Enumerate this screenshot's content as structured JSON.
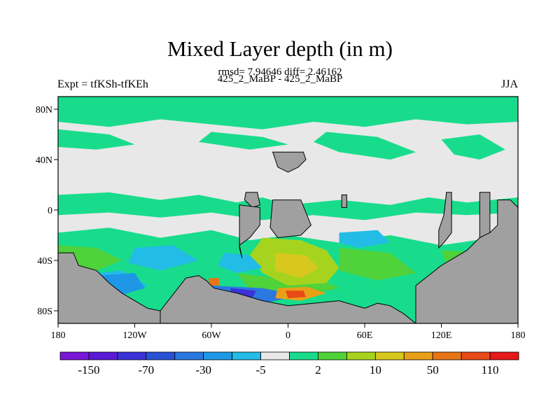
{
  "title": "Mixed Layer depth (in m)",
  "stats": "rmsd= 7.94646 diff= 2.46162",
  "subtitle": "425_2_MaBP - 425_2_MaBP",
  "left_label": "Expt = tfKSh-tfKEh",
  "right_label": "JJA",
  "colors": {
    "land": "#a0a0a0",
    "background": "#e8e8e8",
    "frame": "#000000"
  },
  "chart_data": {
    "type": "heatmap",
    "projection": "cylindrical-equidistant",
    "xlim": [
      -180,
      180
    ],
    "ylim": [
      -90,
      90
    ],
    "x_ticks": [
      {
        "value": -180,
        "label": "180"
      },
      {
        "value": -120,
        "label": "120W"
      },
      {
        "value": -60,
        "label": "60W"
      },
      {
        "value": 0,
        "label": "0"
      },
      {
        "value": 60,
        "label": "60E"
      },
      {
        "value": 120,
        "label": "120E"
      },
      {
        "value": 180,
        "label": "180"
      }
    ],
    "y_ticks": [
      {
        "value": 80,
        "label": "80N"
      },
      {
        "value": 40,
        "label": "40N"
      },
      {
        "value": 0,
        "label": "0"
      },
      {
        "value": -40,
        "label": "40S"
      },
      {
        "value": -80,
        "label": "80S"
      }
    ],
    "colorbar": {
      "colors": [
        "#7a16d6",
        "#5a1ad6",
        "#3a32d6",
        "#2a52d6",
        "#2a78e0",
        "#1e98e6",
        "#22bce6",
        "#e8e8e8",
        "#18dc8c",
        "#50d23a",
        "#a6d41e",
        "#d8c81e",
        "#e8a018",
        "#e87418",
        "#e84a18",
        "#e81818"
      ],
      "labels": [
        {
          "boundary": 1,
          "text": "-150"
        },
        {
          "boundary": 3,
          "text": "-70"
        },
        {
          "boundary": 5,
          "text": "-30"
        },
        {
          "boundary": 7,
          "text": "-5"
        },
        {
          "boundary": 9,
          "text": "2"
        },
        {
          "boundary": 11,
          "text": "10"
        },
        {
          "boundary": 13,
          "text": "50"
        },
        {
          "boundary": 15,
          "text": "110"
        }
      ]
    },
    "field_regions": [
      {
        "color": "#18dc8c",
        "polygon": [
          [
            -180,
            90
          ],
          [
            180,
            90
          ],
          [
            180,
            70
          ],
          [
            140,
            68
          ],
          [
            100,
            72
          ],
          [
            60,
            66
          ],
          [
            20,
            70
          ],
          [
            -20,
            64
          ],
          [
            -60,
            68
          ],
          [
            -100,
            72
          ],
          [
            -140,
            66
          ],
          [
            -180,
            70
          ]
        ]
      },
      {
        "color": "#18dc8c",
        "polygon": [
          [
            -180,
            64
          ],
          [
            -140,
            60
          ],
          [
            -120,
            52
          ],
          [
            -150,
            48
          ],
          [
            -180,
            50
          ]
        ]
      },
      {
        "color": "#18dc8c",
        "polygon": [
          [
            -60,
            62
          ],
          [
            -20,
            58
          ],
          [
            0,
            52
          ],
          [
            -30,
            48
          ],
          [
            -70,
            54
          ]
        ]
      },
      {
        "color": "#18dc8c",
        "polygon": [
          [
            30,
            62
          ],
          [
            70,
            58
          ],
          [
            100,
            46
          ],
          [
            80,
            40
          ],
          [
            40,
            46
          ],
          [
            20,
            54
          ]
        ]
      },
      {
        "color": "#18dc8c",
        "polygon": [
          [
            120,
            56
          ],
          [
            150,
            60
          ],
          [
            170,
            48
          ],
          [
            150,
            40
          ],
          [
            130,
            44
          ]
        ]
      },
      {
        "color": "#18dc8c",
        "polygon": [
          [
            -180,
            12
          ],
          [
            -140,
            14
          ],
          [
            -100,
            8
          ],
          [
            -70,
            12
          ],
          [
            -40,
            6
          ],
          [
            -20,
            10
          ],
          [
            0,
            4
          ],
          [
            40,
            8
          ],
          [
            80,
            4
          ],
          [
            110,
            10
          ],
          [
            140,
            6
          ],
          [
            180,
            10
          ],
          [
            180,
            -2
          ],
          [
            140,
            -4
          ],
          [
            100,
            -2
          ],
          [
            60,
            -8
          ],
          [
            20,
            -4
          ],
          [
            -20,
            -8
          ],
          [
            -60,
            -2
          ],
          [
            -100,
            -6
          ],
          [
            -140,
            -2
          ],
          [
            -180,
            -4
          ]
        ]
      },
      {
        "color": "#18dc8c",
        "polygon": [
          [
            -180,
            -18
          ],
          [
            -140,
            -14
          ],
          [
            -100,
            -22
          ],
          [
            -60,
            -16
          ],
          [
            -30,
            -24
          ],
          [
            0,
            -20
          ],
          [
            40,
            -26
          ],
          [
            80,
            -20
          ],
          [
            120,
            -28
          ],
          [
            160,
            -22
          ],
          [
            180,
            -26
          ],
          [
            180,
            -90
          ],
          [
            -180,
            -90
          ]
        ]
      },
      {
        "color": "#50d23a",
        "polygon": [
          [
            -180,
            -28
          ],
          [
            -150,
            -30
          ],
          [
            -130,
            -40
          ],
          [
            -150,
            -48
          ],
          [
            -180,
            -44
          ]
        ]
      },
      {
        "color": "#50d23a",
        "polygon": [
          [
            40,
            -30
          ],
          [
            80,
            -34
          ],
          [
            100,
            -50
          ],
          [
            70,
            -56
          ],
          [
            40,
            -48
          ]
        ]
      },
      {
        "color": "#50d23a",
        "polygon": [
          [
            120,
            -32
          ],
          [
            160,
            -34
          ],
          [
            180,
            -44
          ],
          [
            150,
            -50
          ],
          [
            125,
            -46
          ]
        ]
      },
      {
        "color": "#50d23a",
        "polygon": [
          [
            -40,
            -50
          ],
          [
            -10,
            -54
          ],
          [
            20,
            -52
          ],
          [
            40,
            -62
          ],
          [
            10,
            -68
          ],
          [
            -30,
            -64
          ]
        ]
      },
      {
        "color": "#a6d41e",
        "polygon": [
          [
            -20,
            -22
          ],
          [
            10,
            -24
          ],
          [
            30,
            -32
          ],
          [
            40,
            -46
          ],
          [
            30,
            -58
          ],
          [
            0,
            -60
          ],
          [
            -20,
            -50
          ],
          [
            -30,
            -36
          ]
        ]
      },
      {
        "color": "#d8c81e",
        "polygon": [
          [
            -10,
            -34
          ],
          [
            14,
            -36
          ],
          [
            24,
            -46
          ],
          [
            10,
            -54
          ],
          [
            -10,
            -48
          ]
        ]
      },
      {
        "color": "#22bce6",
        "polygon": [
          [
            -120,
            -30
          ],
          [
            -90,
            -28
          ],
          [
            -70,
            -40
          ],
          [
            -100,
            -48
          ],
          [
            -125,
            -42
          ]
        ]
      },
      {
        "color": "#22bce6",
        "polygon": [
          [
            -170,
            -52
          ],
          [
            -130,
            -48
          ],
          [
            -110,
            -60
          ],
          [
            -140,
            -72
          ],
          [
            -175,
            -68
          ]
        ]
      },
      {
        "color": "#22bce6",
        "polygon": [
          [
            -50,
            -34
          ],
          [
            -30,
            -36
          ],
          [
            -20,
            -46
          ],
          [
            -40,
            -50
          ],
          [
            -55,
            -44
          ]
        ]
      },
      {
        "color": "#22bce6",
        "polygon": [
          [
            40,
            -18
          ],
          [
            70,
            -16
          ],
          [
            80,
            -26
          ],
          [
            55,
            -30
          ],
          [
            40,
            -26
          ]
        ]
      },
      {
        "color": "#1e98e6",
        "polygon": [
          [
            -150,
            -52
          ],
          [
            -120,
            -50
          ],
          [
            -112,
            -62
          ],
          [
            -140,
            -70
          ]
        ]
      },
      {
        "color": "#2a78e0",
        "polygon": [
          [
            -60,
            -60
          ],
          [
            -20,
            -62
          ],
          [
            10,
            -68
          ],
          [
            -20,
            -74
          ],
          [
            -60,
            -70
          ]
        ]
      },
      {
        "color": "#3a32d6",
        "polygon": [
          [
            -45,
            -62
          ],
          [
            -25,
            -64
          ],
          [
            -28,
            -70
          ],
          [
            -45,
            -70
          ]
        ]
      },
      {
        "color": "#e8a018",
        "polygon": [
          [
            -8,
            -62
          ],
          [
            15,
            -61
          ],
          [
            30,
            -66
          ],
          [
            10,
            -72
          ],
          [
            -10,
            -70
          ]
        ]
      },
      {
        "color": "#e84a18",
        "polygon": [
          [
            -2,
            -64
          ],
          [
            12,
            -64
          ],
          [
            14,
            -69
          ],
          [
            0,
            -70
          ]
        ]
      },
      {
        "color": "#e87418",
        "polygon": [
          [
            -62,
            -54
          ],
          [
            -54,
            -54
          ],
          [
            -54,
            -60
          ],
          [
            -62,
            -60
          ]
        ]
      }
    ],
    "land_regions": [
      {
        "name": "north-america-stub",
        "polygon": [
          [
            -12,
            46
          ],
          [
            12,
            46
          ],
          [
            14,
            40
          ],
          [
            8,
            34
          ],
          [
            0,
            30
          ],
          [
            -8,
            34
          ],
          [
            -10,
            40
          ]
        ]
      },
      {
        "name": "central-america",
        "polygon": [
          [
            -33,
            14
          ],
          [
            -24,
            14
          ],
          [
            -22,
            4
          ],
          [
            -28,
            2
          ],
          [
            -34,
            8
          ]
        ]
      },
      {
        "name": "north-africa",
        "polygon": [
          [
            -12,
            8
          ],
          [
            10,
            8
          ],
          [
            14,
            -2
          ],
          [
            18,
            -12
          ],
          [
            10,
            -20
          ],
          [
            -8,
            -22
          ],
          [
            -14,
            -14
          ]
        ]
      },
      {
        "name": "south-america",
        "polygon": [
          [
            -38,
            4
          ],
          [
            -22,
            2
          ],
          [
            -22,
            -12
          ],
          [
            -30,
            -22
          ],
          [
            -38,
            -28
          ],
          [
            -36,
            -38
          ],
          [
            -38,
            -30
          ]
        ]
      },
      {
        "name": "africa-east",
        "polygon": [
          [
            42,
            12
          ],
          [
            46,
            12
          ],
          [
            46,
            2
          ],
          [
            42,
            2
          ]
        ]
      },
      {
        "name": "asia-east-1",
        "polygon": [
          [
            124,
            14
          ],
          [
            128,
            14
          ],
          [
            128,
            -18
          ],
          [
            122,
            -26
          ],
          [
            118,
            -30
          ],
          [
            118,
            -16
          ],
          [
            122,
            -4
          ]
        ]
      },
      {
        "name": "asia-east-2",
        "polygon": [
          [
            150,
            14
          ],
          [
            158,
            14
          ],
          [
            158,
            -18
          ],
          [
            150,
            -22
          ]
        ]
      },
      {
        "name": "australia",
        "polygon": [
          [
            164,
            8
          ],
          [
            174,
            8
          ],
          [
            180,
            2
          ],
          [
            180,
            -90
          ],
          [
            100,
            -90
          ],
          [
            100,
            -60
          ],
          [
            110,
            -52
          ],
          [
            120,
            -44
          ],
          [
            130,
            -38
          ],
          [
            140,
            -32
          ],
          [
            150,
            -22
          ],
          [
            158,
            -18
          ],
          [
            164,
            -12
          ]
        ]
      },
      {
        "name": "antarctica-west",
        "polygon": [
          [
            -180,
            -34
          ],
          [
            -168,
            -34
          ],
          [
            -164,
            -44
          ],
          [
            -150,
            -48
          ],
          [
            -140,
            -58
          ],
          [
            -130,
            -66
          ],
          [
            -120,
            -72
          ],
          [
            -110,
            -78
          ],
          [
            -100,
            -80
          ],
          [
            -100,
            -90
          ],
          [
            -180,
            -90
          ]
        ]
      },
      {
        "name": "antarctica-central",
        "polygon": [
          [
            -100,
            -80
          ],
          [
            -80,
            -54
          ],
          [
            -70,
            -52
          ],
          [
            -64,
            -56
          ],
          [
            -58,
            -62
          ],
          [
            -40,
            -66
          ],
          [
            -20,
            -72
          ],
          [
            0,
            -76
          ],
          [
            20,
            -74
          ],
          [
            40,
            -72
          ],
          [
            60,
            -78
          ],
          [
            70,
            -74
          ],
          [
            80,
            -76
          ],
          [
            90,
            -82
          ],
          [
            100,
            -90
          ],
          [
            -100,
            -90
          ]
        ]
      }
    ]
  }
}
